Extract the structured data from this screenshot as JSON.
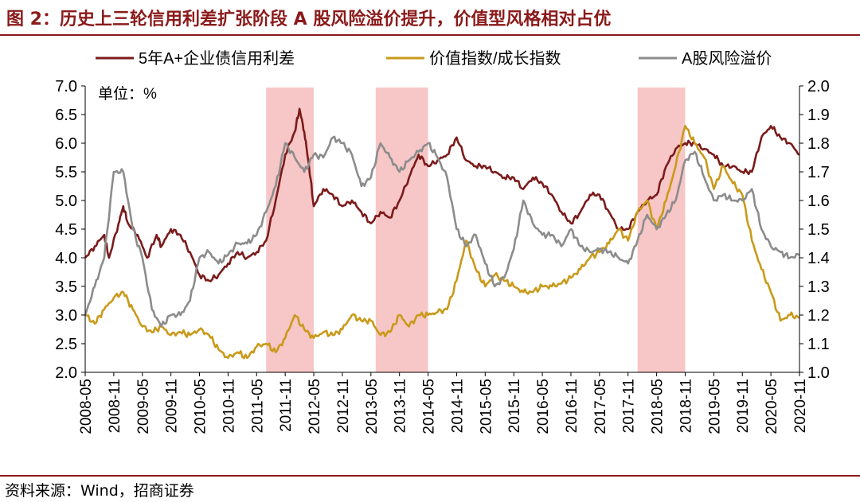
{
  "header": {
    "title": "图 2：历史上三轮信用利差扩张阶段 A 股风险溢价提升，价值型风格相对占优"
  },
  "footer": {
    "source": "资料来源：Wind，招商证券"
  },
  "chart_data": {
    "type": "line",
    "unit_note": "单位：%",
    "x_ticks": [
      "2008-05",
      "2008-11",
      "2009-05",
      "2009-11",
      "2010-05",
      "2010-11",
      "2011-05",
      "2011-11",
      "2012-05",
      "2012-11",
      "2013-05",
      "2013-11",
      "2014-05",
      "2014-11",
      "2015-05",
      "2015-11",
      "2016-05",
      "2016-11",
      "2017-05",
      "2017-11",
      "2018-05",
      "2018-11",
      "2019-05",
      "2019-11",
      "2020-05",
      "2020-11"
    ],
    "y_left": {
      "min": 2.0,
      "max": 7.0,
      "ticks": [
        "2.0",
        "2.5",
        "3.0",
        "3.5",
        "4.0",
        "4.5",
        "5.0",
        "5.5",
        "6.0",
        "6.5",
        "7.0"
      ]
    },
    "y_right": {
      "min": 1.0,
      "max": 2.0,
      "ticks": [
        "1.0",
        "1.1",
        "1.2",
        "1.3",
        "1.4",
        "1.5",
        "1.6",
        "1.7",
        "1.8",
        "1.9",
        "2.0"
      ]
    },
    "shaded_periods": [
      {
        "start": "2011-07",
        "end": "2012-05"
      },
      {
        "start": "2013-06",
        "end": "2014-05"
      },
      {
        "start": "2018-01",
        "end": "2018-11"
      }
    ],
    "series": [
      {
        "name": "5年A+企业债信用利差",
        "color": "#7B1B1B",
        "axis": "left",
        "data": [
          [
            "2008-05",
            4.0
          ],
          [
            "2008-07",
            4.2
          ],
          [
            "2008-09",
            4.4
          ],
          [
            "2008-10",
            4.0
          ],
          [
            "2008-12",
            4.6
          ],
          [
            "2009-01",
            4.9
          ],
          [
            "2009-02",
            4.6
          ],
          [
            "2009-04",
            4.4
          ],
          [
            "2009-06",
            4.0
          ],
          [
            "2009-08",
            4.4
          ],
          [
            "2009-09",
            4.2
          ],
          [
            "2009-11",
            4.5
          ],
          [
            "2010-01",
            4.4
          ],
          [
            "2010-03",
            4.1
          ],
          [
            "2010-05",
            3.7
          ],
          [
            "2010-07",
            3.6
          ],
          [
            "2010-09",
            3.7
          ],
          [
            "2010-11",
            3.9
          ],
          [
            "2011-01",
            4.1
          ],
          [
            "2011-03",
            4.0
          ],
          [
            "2011-05",
            4.1
          ],
          [
            "2011-07",
            4.3
          ],
          [
            "2011-09",
            5.0
          ],
          [
            "2011-11",
            5.8
          ],
          [
            "2012-01",
            6.2
          ],
          [
            "2012-02",
            6.6
          ],
          [
            "2012-03",
            6.2
          ],
          [
            "2012-04",
            5.6
          ],
          [
            "2012-05",
            4.9
          ],
          [
            "2012-07",
            5.2
          ],
          [
            "2012-09",
            5.1
          ],
          [
            "2012-11",
            4.9
          ],
          [
            "2013-01",
            5.0
          ],
          [
            "2013-03",
            4.8
          ],
          [
            "2013-05",
            4.6
          ],
          [
            "2013-07",
            4.8
          ],
          [
            "2013-09",
            4.7
          ],
          [
            "2013-11",
            5.0
          ],
          [
            "2014-01",
            5.4
          ],
          [
            "2014-03",
            5.8
          ],
          [
            "2014-05",
            5.6
          ],
          [
            "2014-07",
            5.7
          ],
          [
            "2014-09",
            5.8
          ],
          [
            "2014-11",
            6.1
          ],
          [
            "2015-01",
            5.7
          ],
          [
            "2015-03",
            5.6
          ],
          [
            "2015-05",
            5.6
          ],
          [
            "2015-07",
            5.5
          ],
          [
            "2015-09",
            5.4
          ],
          [
            "2015-11",
            5.4
          ],
          [
            "2016-01",
            5.2
          ],
          [
            "2016-03",
            5.4
          ],
          [
            "2016-05",
            5.3
          ],
          [
            "2016-07",
            5.1
          ],
          [
            "2016-09",
            4.8
          ],
          [
            "2016-11",
            4.6
          ],
          [
            "2017-01",
            4.8
          ],
          [
            "2017-03",
            5.1
          ],
          [
            "2017-05",
            5.1
          ],
          [
            "2017-07",
            4.8
          ],
          [
            "2017-09",
            4.5
          ],
          [
            "2017-11",
            4.5
          ],
          [
            "2018-01",
            4.8
          ],
          [
            "2018-03",
            5.0
          ],
          [
            "2018-05",
            5.1
          ],
          [
            "2018-07",
            5.6
          ],
          [
            "2018-09",
            5.9
          ],
          [
            "2018-11",
            6.0
          ],
          [
            "2019-01",
            6.0
          ],
          [
            "2019-03",
            5.9
          ],
          [
            "2019-05",
            5.8
          ],
          [
            "2019-07",
            5.6
          ],
          [
            "2019-09",
            5.6
          ],
          [
            "2019-11",
            5.5
          ],
          [
            "2020-01",
            5.5
          ],
          [
            "2020-03",
            6.1
          ],
          [
            "2020-05",
            6.3
          ],
          [
            "2020-07",
            6.1
          ],
          [
            "2020-09",
            6.0
          ],
          [
            "2020-11",
            5.8
          ]
        ]
      },
      {
        "name": "价值指数/成长指数",
        "color": "#C99A1A",
        "axis": "right",
        "data": [
          [
            "2008-05",
            1.2
          ],
          [
            "2008-07",
            1.17
          ],
          [
            "2008-09",
            1.22
          ],
          [
            "2008-11",
            1.26
          ],
          [
            "2009-01",
            1.28
          ],
          [
            "2009-03",
            1.22
          ],
          [
            "2009-05",
            1.16
          ],
          [
            "2009-07",
            1.14
          ],
          [
            "2009-09",
            1.16
          ],
          [
            "2009-11",
            1.13
          ],
          [
            "2010-01",
            1.14
          ],
          [
            "2010-03",
            1.13
          ],
          [
            "2010-05",
            1.15
          ],
          [
            "2010-07",
            1.13
          ],
          [
            "2010-09",
            1.08
          ],
          [
            "2010-11",
            1.05
          ],
          [
            "2011-01",
            1.07
          ],
          [
            "2011-03",
            1.05
          ],
          [
            "2011-05",
            1.09
          ],
          [
            "2011-07",
            1.1
          ],
          [
            "2011-09",
            1.07
          ],
          [
            "2011-11",
            1.12
          ],
          [
            "2012-01",
            1.2
          ],
          [
            "2012-03",
            1.15
          ],
          [
            "2012-05",
            1.12
          ],
          [
            "2012-07",
            1.14
          ],
          [
            "2012-09",
            1.13
          ],
          [
            "2012-11",
            1.15
          ],
          [
            "2013-01",
            1.2
          ],
          [
            "2013-03",
            1.18
          ],
          [
            "2013-05",
            1.18
          ],
          [
            "2013-07",
            1.13
          ],
          [
            "2013-09",
            1.14
          ],
          [
            "2013-11",
            1.2
          ],
          [
            "2014-01",
            1.16
          ],
          [
            "2014-03",
            1.2
          ],
          [
            "2014-05",
            1.2
          ],
          [
            "2014-07",
            1.21
          ],
          [
            "2014-09",
            1.22
          ],
          [
            "2014-11",
            1.32
          ],
          [
            "2015-01",
            1.46
          ],
          [
            "2015-03",
            1.36
          ],
          [
            "2015-05",
            1.3
          ],
          [
            "2015-07",
            1.34
          ],
          [
            "2015-09",
            1.32
          ],
          [
            "2015-11",
            1.3
          ],
          [
            "2016-01",
            1.28
          ],
          [
            "2016-03",
            1.28
          ],
          [
            "2016-05",
            1.3
          ],
          [
            "2016-07",
            1.3
          ],
          [
            "2016-09",
            1.31
          ],
          [
            "2016-11",
            1.33
          ],
          [
            "2017-01",
            1.36
          ],
          [
            "2017-03",
            1.4
          ],
          [
            "2017-05",
            1.42
          ],
          [
            "2017-07",
            1.45
          ],
          [
            "2017-09",
            1.5
          ],
          [
            "2017-11",
            1.46
          ],
          [
            "2018-01",
            1.56
          ],
          [
            "2018-03",
            1.6
          ],
          [
            "2018-05",
            1.5
          ],
          [
            "2018-07",
            1.6
          ],
          [
            "2018-09",
            1.72
          ],
          [
            "2018-11",
            1.86
          ],
          [
            "2019-01",
            1.8
          ],
          [
            "2019-03",
            1.75
          ],
          [
            "2019-05",
            1.64
          ],
          [
            "2019-07",
            1.72
          ],
          [
            "2019-09",
            1.66
          ],
          [
            "2019-11",
            1.62
          ],
          [
            "2020-01",
            1.46
          ],
          [
            "2020-03",
            1.36
          ],
          [
            "2020-05",
            1.28
          ],
          [
            "2020-07",
            1.18
          ],
          [
            "2020-09",
            1.2
          ],
          [
            "2020-11",
            1.19
          ]
        ]
      },
      {
        "name": "A股风险溢价",
        "color": "#8C8C8C",
        "axis": "right",
        "data": [
          [
            "2008-05",
            1.2
          ],
          [
            "2008-07",
            1.3
          ],
          [
            "2008-09",
            1.4
          ],
          [
            "2008-11",
            1.7
          ],
          [
            "2009-01",
            1.7
          ],
          [
            "2009-03",
            1.5
          ],
          [
            "2009-05",
            1.4
          ],
          [
            "2009-07",
            1.22
          ],
          [
            "2009-09",
            1.16
          ],
          [
            "2009-11",
            1.2
          ],
          [
            "2010-01",
            1.2
          ],
          [
            "2010-03",
            1.25
          ],
          [
            "2010-05",
            1.4
          ],
          [
            "2010-07",
            1.42
          ],
          [
            "2010-09",
            1.38
          ],
          [
            "2010-11",
            1.41
          ],
          [
            "2011-01",
            1.45
          ],
          [
            "2011-03",
            1.45
          ],
          [
            "2011-05",
            1.48
          ],
          [
            "2011-07",
            1.56
          ],
          [
            "2011-09",
            1.65
          ],
          [
            "2011-11",
            1.8
          ],
          [
            "2012-01",
            1.75
          ],
          [
            "2012-03",
            1.7
          ],
          [
            "2012-05",
            1.76
          ],
          [
            "2012-07",
            1.75
          ],
          [
            "2012-09",
            1.82
          ],
          [
            "2012-11",
            1.8
          ],
          [
            "2013-01",
            1.76
          ],
          [
            "2013-03",
            1.65
          ],
          [
            "2013-05",
            1.68
          ],
          [
            "2013-07",
            1.8
          ],
          [
            "2013-09",
            1.75
          ],
          [
            "2013-11",
            1.7
          ],
          [
            "2014-01",
            1.74
          ],
          [
            "2014-03",
            1.77
          ],
          [
            "2014-05",
            1.8
          ],
          [
            "2014-07",
            1.75
          ],
          [
            "2014-09",
            1.68
          ],
          [
            "2014-11",
            1.5
          ],
          [
            "2015-01",
            1.44
          ],
          [
            "2015-03",
            1.48
          ],
          [
            "2015-05",
            1.38
          ],
          [
            "2015-07",
            1.3
          ],
          [
            "2015-09",
            1.33
          ],
          [
            "2015-11",
            1.43
          ],
          [
            "2016-01",
            1.6
          ],
          [
            "2016-03",
            1.52
          ],
          [
            "2016-05",
            1.48
          ],
          [
            "2016-07",
            1.48
          ],
          [
            "2016-09",
            1.44
          ],
          [
            "2016-11",
            1.5
          ],
          [
            "2017-01",
            1.44
          ],
          [
            "2017-03",
            1.42
          ],
          [
            "2017-05",
            1.43
          ],
          [
            "2017-07",
            1.42
          ],
          [
            "2017-09",
            1.4
          ],
          [
            "2017-11",
            1.38
          ],
          [
            "2018-01",
            1.46
          ],
          [
            "2018-03",
            1.55
          ],
          [
            "2018-05",
            1.5
          ],
          [
            "2018-07",
            1.55
          ],
          [
            "2018-09",
            1.6
          ],
          [
            "2018-11",
            1.74
          ],
          [
            "2019-01",
            1.77
          ],
          [
            "2019-03",
            1.68
          ],
          [
            "2019-05",
            1.6
          ],
          [
            "2019-07",
            1.62
          ],
          [
            "2019-09",
            1.6
          ],
          [
            "2019-11",
            1.6
          ],
          [
            "2020-01",
            1.64
          ],
          [
            "2020-03",
            1.5
          ],
          [
            "2020-05",
            1.44
          ],
          [
            "2020-07",
            1.42
          ],
          [
            "2020-09",
            1.4
          ],
          [
            "2020-11",
            1.41
          ]
        ]
      }
    ]
  }
}
